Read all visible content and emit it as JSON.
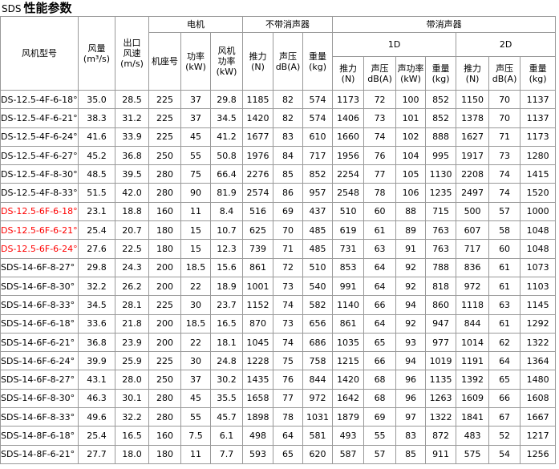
{
  "title_prefix": "SDS",
  "title": "性能参数",
  "header": {
    "fan_model": "风机型号",
    "airflow": "风量\n(m³/s)",
    "outlet_speed": "出口\n风速\n(m/s)",
    "motor": "电机",
    "no_silencer": "不带消声器",
    "with_silencer": "带消声器",
    "frame": "机座号",
    "power": "功率\n(kW)",
    "fan_power": "风机\n功率\n(kW)",
    "thrust": "推力\n(N)",
    "spl": "声压\ndB(A)",
    "weight": "重量\n(kg)",
    "d1": "1D",
    "d2": "2D",
    "d1_cols": [
      "推力\n(N)",
      "声压\ndB(A)",
      "声功率\n(kW)",
      "重量\n(kg)"
    ],
    "d2_cols": [
      "推力\n(N)",
      "声压\ndB(A)",
      "重量\n(kg)"
    ]
  },
  "highlight_rows": [
    6,
    7,
    8
  ],
  "highlight_color": "#ff0000",
  "rows": [
    [
      "DS-12.5-4F-6-18°",
      "35.0",
      "28.5",
      "225",
      "37",
      "29.8",
      "1185",
      "82",
      "574",
      "1173",
      "72",
      "100",
      "852",
      "1150",
      "70",
      "1137"
    ],
    [
      "DS-12.5-4F-6-21°",
      "38.3",
      "31.2",
      "225",
      "37",
      "34.5",
      "1420",
      "82",
      "574",
      "1406",
      "73",
      "101",
      "852",
      "1378",
      "70",
      "1137"
    ],
    [
      "DS-12.5-4F-6-24°",
      "41.6",
      "33.9",
      "225",
      "45",
      "41.2",
      "1677",
      "83",
      "610",
      "1660",
      "74",
      "102",
      "888",
      "1627",
      "71",
      "1173"
    ],
    [
      "DS-12.5-4F-6-27°",
      "45.2",
      "36.8",
      "250",
      "55",
      "50.8",
      "1976",
      "84",
      "717",
      "1956",
      "76",
      "104",
      "995",
      "1917",
      "73",
      "1280"
    ],
    [
      "DS-12.5-4F-8-30°",
      "48.5",
      "39.5",
      "280",
      "75",
      "66.4",
      "2276",
      "85",
      "852",
      "2254",
      "77",
      "105",
      "1130",
      "2208",
      "74",
      "1415"
    ],
    [
      "DS-12.5-4F-8-33°",
      "51.5",
      "42.0",
      "280",
      "90",
      "81.9",
      "2574",
      "86",
      "957",
      "2548",
      "78",
      "106",
      "1235",
      "2497",
      "74",
      "1520"
    ],
    [
      "DS-12.5-6F-6-18°",
      "23.1",
      "18.8",
      "160",
      "11",
      "8.4",
      "516",
      "69",
      "437",
      "510",
      "60",
      "88",
      "715",
      "500",
      "57",
      "1000"
    ],
    [
      "DS-12.5-6F-6-21°",
      "25.4",
      "20.7",
      "180",
      "15",
      "10.7",
      "625",
      "70",
      "485",
      "619",
      "61",
      "89",
      "763",
      "607",
      "58",
      "1048"
    ],
    [
      "DS-12.5-6F-6-24°",
      "27.6",
      "22.5",
      "180",
      "15",
      "12.3",
      "739",
      "71",
      "485",
      "731",
      "63",
      "91",
      "763",
      "717",
      "60",
      "1048"
    ],
    [
      "SDS-14-6F-8-27°",
      "29.8",
      "24.3",
      "200",
      "18.5",
      "15.6",
      "861",
      "72",
      "510",
      "853",
      "64",
      "92",
      "788",
      "836",
      "61",
      "1073"
    ],
    [
      "SDS-14-6F-8-30°",
      "32.2",
      "26.2",
      "200",
      "22",
      "18.9",
      "1001",
      "73",
      "540",
      "991",
      "64",
      "92",
      "818",
      "972",
      "61",
      "1103"
    ],
    [
      "SDS-14-6F-8-33°",
      "34.5",
      "28.1",
      "225",
      "30",
      "23.7",
      "1152",
      "74",
      "582",
      "1140",
      "66",
      "94",
      "860",
      "1118",
      "63",
      "1145"
    ],
    [
      "SDS-14-6F-6-18°",
      "33.6",
      "21.8",
      "200",
      "18.5",
      "16.5",
      "870",
      "73",
      "656",
      "861",
      "64",
      "92",
      "947",
      "844",
      "61",
      "1292"
    ],
    [
      "SDS-14-6F-6-21°",
      "36.8",
      "23.9",
      "200",
      "22",
      "18.1",
      "1045",
      "74",
      "686",
      "1035",
      "65",
      "93",
      "977",
      "1014",
      "62",
      "1322"
    ],
    [
      "SDS-14-6F-6-24°",
      "39.9",
      "25.9",
      "225",
      "30",
      "24.8",
      "1228",
      "75",
      "758",
      "1215",
      "66",
      "94",
      "1019",
      "1191",
      "64",
      "1364"
    ],
    [
      "SDS-14-6F-8-27°",
      "43.1",
      "28.0",
      "250",
      "37",
      "30.2",
      "1435",
      "76",
      "844",
      "1420",
      "68",
      "96",
      "1135",
      "1392",
      "65",
      "1480"
    ],
    [
      "SDS-14-6F-8-30°",
      "46.3",
      "30.1",
      "280",
      "45",
      "35.5",
      "1658",
      "77",
      "972",
      "1642",
      "68",
      "96",
      "1263",
      "1609",
      "66",
      "1608"
    ],
    [
      "SDS-14-6F-8-33°",
      "49.6",
      "32.2",
      "280",
      "55",
      "45.7",
      "1898",
      "78",
      "1031",
      "1879",
      "69",
      "97",
      "1322",
      "1841",
      "67",
      "1667"
    ],
    [
      "SDS-14-8F-6-18°",
      "25.4",
      "16.5",
      "160",
      "7.5",
      "6.1",
      "498",
      "64",
      "581",
      "493",
      "55",
      "83",
      "872",
      "483",
      "52",
      "1217"
    ],
    [
      "SDS-14-8F-6-21°",
      "27.7",
      "18.0",
      "180",
      "11",
      "7.7",
      "593",
      "65",
      "620",
      "587",
      "57",
      "85",
      "911",
      "575",
      "54",
      "1256"
    ]
  ]
}
